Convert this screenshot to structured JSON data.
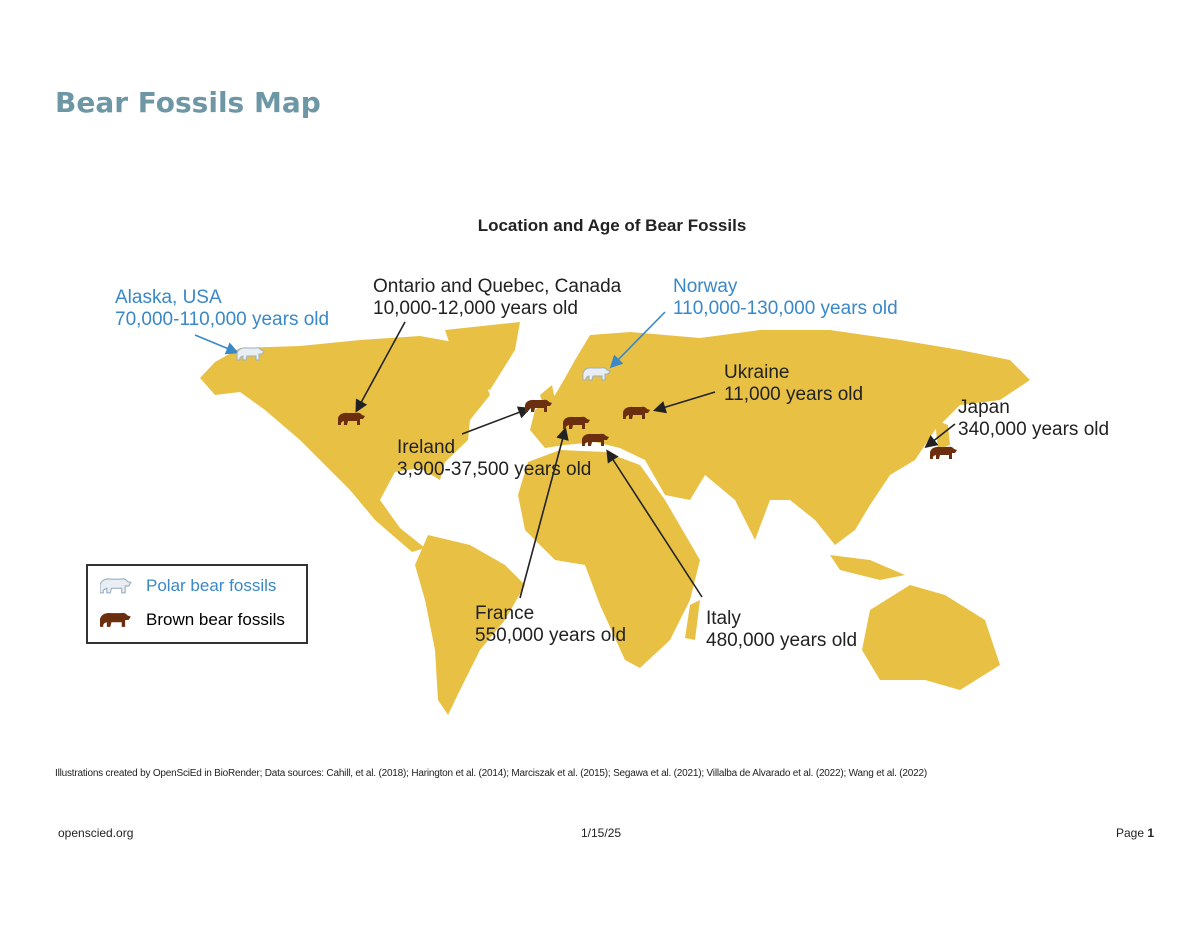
{
  "page_title": "Bear Fossils Map",
  "map": {
    "title": "Location and Age of Bear Fossils",
    "land_color": "#e8c144",
    "polar_color": "#3a88c8",
    "locations": [
      {
        "name": "Alaska, USA",
        "age": "70,000-110,000 years old",
        "type": "polar"
      },
      {
        "name": "Ontario and Quebec, Canada",
        "age": "10,000-12,000 years old",
        "type": "brown"
      },
      {
        "name": "Norway",
        "age": "110,000-130,000 years old",
        "type": "polar"
      },
      {
        "name": "Ukraine",
        "age": "11,000 years old",
        "type": "brown"
      },
      {
        "name": "Japan",
        "age": "340,000 years old",
        "type": "brown"
      },
      {
        "name": "Ireland",
        "age": "3,900-37,500 years old",
        "type": "brown"
      },
      {
        "name": "France",
        "age": "550,000 years old",
        "type": "brown"
      },
      {
        "name": "Italy",
        "age": "480,000 years old",
        "type": "brown"
      }
    ],
    "legend": {
      "polar": "Polar bear fossils",
      "brown": "Brown bear fossils"
    }
  },
  "citation": "Illustrations created by OpenSciEd in BioRender; Data sources: Cahill, et al. (2018); Harington et al. (2014); Marciszak et al. (2015); Segawa et al. (2021); Villalba de Alvarado et al. (2022); Wang et al. (2022)",
  "footer": {
    "site": "openscied.org",
    "date": "1/15/25",
    "page_label": "Page",
    "page_number": "1"
  }
}
